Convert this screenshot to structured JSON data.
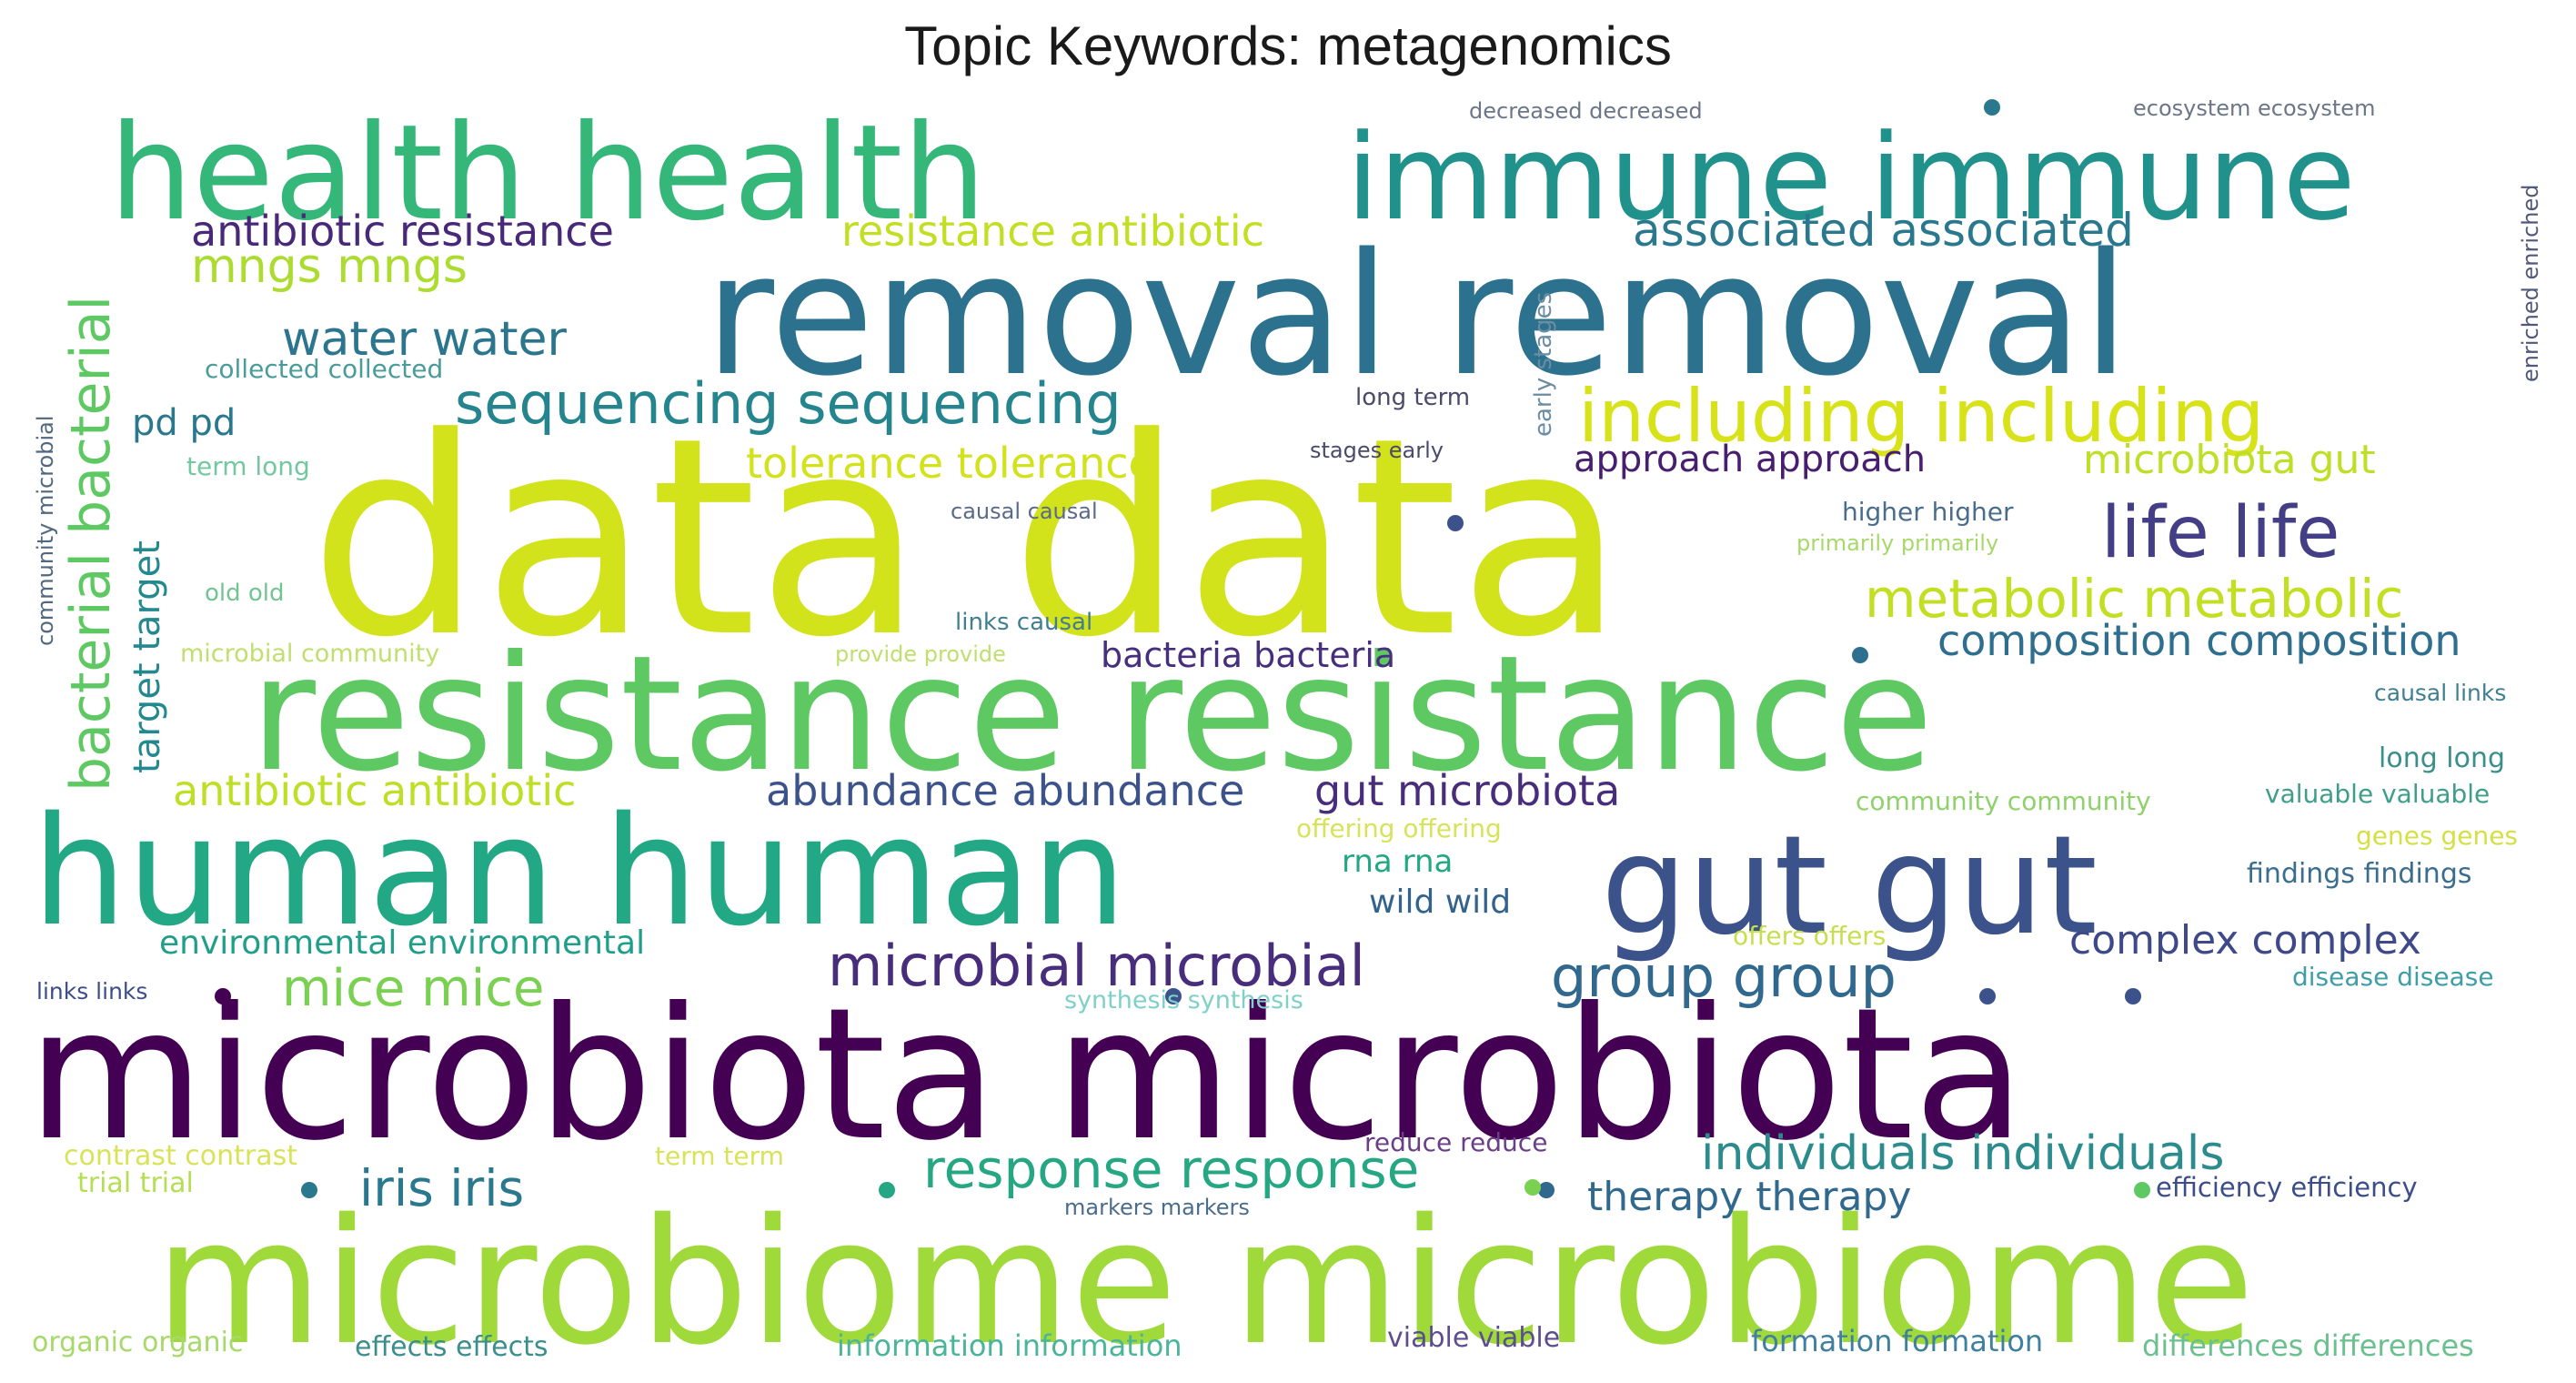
{
  "chart_data": {
    "type": "wordcloud",
    "title": "Topic Keywords: metagenomics",
    "words": [
      {
        "text": "data data",
        "weight": 100,
        "color": "#d2e21b"
      },
      {
        "text": "microbiota microbiota",
        "weight": 74,
        "color": "#440154"
      },
      {
        "text": "microbiome microbiome",
        "weight": 72,
        "color": "#9fda3a"
      },
      {
        "text": "removal removal",
        "weight": 70,
        "color": "#2c728e"
      },
      {
        "text": "resistance resistance",
        "weight": 68,
        "color": "#5ec962"
      },
      {
        "text": "human human",
        "weight": 66,
        "color": "#22a884"
      },
      {
        "text": "gut gut",
        "weight": 56,
        "color": "#3b528b"
      },
      {
        "text": "health health",
        "weight": 52,
        "color": "#35b779"
      },
      {
        "text": "immune immune",
        "weight": 50,
        "color": "#21918c"
      },
      {
        "text": "including including",
        "weight": 30,
        "color": "#d8e219"
      },
      {
        "text": "life life",
        "weight": 28,
        "color": "#433e85"
      },
      {
        "text": "bacterial bacterial",
        "weight": 28,
        "color": "#5ec962"
      },
      {
        "text": "sequencing sequencing",
        "weight": 24,
        "color": "#25858e"
      },
      {
        "text": "microbial microbial",
        "weight": 23,
        "color": "#472d7b"
      },
      {
        "text": "group group",
        "weight": 23,
        "color": "#31688e"
      },
      {
        "text": "metabolic metabolic",
        "weight": 22,
        "color": "#c2df23"
      },
      {
        "text": "response response",
        "weight": 22,
        "color": "#26a784"
      },
      {
        "text": "iris iris",
        "weight": 21,
        "color": "#2a788e"
      },
      {
        "text": "mice mice",
        "weight": 21,
        "color": "#7ad151"
      },
      {
        "text": "individuals individuals",
        "weight": 20,
        "color": "#2c8c8d"
      },
      {
        "text": "mngs mngs",
        "weight": 20,
        "color": "#addc30"
      },
      {
        "text": "water water",
        "weight": 20,
        "color": "#2b758e"
      },
      {
        "text": "associated associated",
        "weight": 19,
        "color": "#2a788e"
      },
      {
        "text": "tolerance tolerance",
        "weight": 18,
        "color": "#d2e21b"
      },
      {
        "text": "antibiotic antibiotic",
        "weight": 18,
        "color": "#bddf26"
      },
      {
        "text": "abundance abundance",
        "weight": 18,
        "color": "#3b528b"
      },
      {
        "text": "gut microbiota",
        "weight": 18,
        "color": "#472d7b"
      },
      {
        "text": "composition composition",
        "weight": 18,
        "color": "#2e6e8e"
      },
      {
        "text": "antibiotic resistance",
        "weight": 18,
        "color": "#482878"
      },
      {
        "text": "resistance antibiotic",
        "weight": 18,
        "color": "#c2df23"
      },
      {
        "text": "therapy therapy",
        "weight": 17,
        "color": "#31688e"
      },
      {
        "text": "complex complex",
        "weight": 17,
        "color": "#3e4989"
      },
      {
        "text": "target target",
        "weight": 16,
        "color": "#23898e"
      },
      {
        "text": "pd pd",
        "weight": 16,
        "color": "#2a788e"
      },
      {
        "text": "approach approach",
        "weight": 16,
        "color": "#481f70"
      },
      {
        "text": "bacteria bacteria",
        "weight": 15,
        "color": "#472f7d"
      },
      {
        "text": "environmental environmental",
        "weight": 14,
        "color": "#1f9e89"
      },
      {
        "text": "rna rna",
        "weight": 14,
        "color": "#22a884"
      },
      {
        "text": "wild wild",
        "weight": 14,
        "color": "#33638d"
      },
      {
        "text": "microbiota gut",
        "weight": 16,
        "color": "#bddf26"
      },
      {
        "text": "decreased decreased",
        "weight": 10,
        "color": "#6b7789"
      },
      {
        "text": "ecosystem ecosystem",
        "weight": 10,
        "color": "#6b7789"
      },
      {
        "text": "enriched enriched",
        "weight": 10,
        "color": "#52587a"
      },
      {
        "text": "early stages",
        "weight": 10,
        "color": "#6b8da3"
      },
      {
        "text": "long term",
        "weight": 10,
        "color": "#4b4a6b"
      },
      {
        "text": "stages early",
        "weight": 10,
        "color": "#4b4a6b"
      },
      {
        "text": "causal causal",
        "weight": 10,
        "color": "#5b6a88"
      },
      {
        "text": "higher higher",
        "weight": 10,
        "color": "#4a6d8c"
      },
      {
        "text": "primarily primarily",
        "weight": 10,
        "color": "#a6d96a"
      },
      {
        "text": "community microbial",
        "weight": 10,
        "color": "#52687f"
      },
      {
        "text": "collected collected",
        "weight": 10,
        "color": "#4a9c9a"
      },
      {
        "text": "term long",
        "weight": 10,
        "color": "#73c8a0"
      },
      {
        "text": "old old",
        "weight": 10,
        "color": "#72c491"
      },
      {
        "text": "microbial community",
        "weight": 10,
        "color": "#bfe06f"
      },
      {
        "text": "provide provide",
        "weight": 10,
        "color": "#bfe06f"
      },
      {
        "text": "links causal",
        "weight": 10,
        "color": "#3f7f8f"
      },
      {
        "text": "causal links",
        "weight": 10,
        "color": "#3f7f8f"
      },
      {
        "text": "long long",
        "weight": 10,
        "color": "#3a8e8b"
      },
      {
        "text": "valuable valuable",
        "weight": 10,
        "color": "#3f9e8a"
      },
      {
        "text": "community community",
        "weight": 10,
        "color": "#8fd16b"
      },
      {
        "text": "offering offering",
        "weight": 10,
        "color": "#d8e35a"
      },
      {
        "text": "genes genes",
        "weight": 10,
        "color": "#d4e045"
      },
      {
        "text": "findings findings",
        "weight": 10,
        "color": "#3b6e8e"
      },
      {
        "text": "offers offers",
        "weight": 10,
        "color": "#c6df4d"
      },
      {
        "text": "links links",
        "weight": 10,
        "color": "#3b4d8b"
      },
      {
        "text": "synthesis synthesis",
        "weight": 10,
        "color": "#7fd0c8"
      },
      {
        "text": "disease disease",
        "weight": 10,
        "color": "#3e9ea8"
      },
      {
        "text": "contrast contrast",
        "weight": 10,
        "color": "#d8e35a"
      },
      {
        "text": "trial trial",
        "weight": 10,
        "color": "#b6de55"
      },
      {
        "text": "term term",
        "weight": 10,
        "color": "#d8e35a"
      },
      {
        "text": "reduce reduce",
        "weight": 10,
        "color": "#6a3f88"
      },
      {
        "text": "markers markers",
        "weight": 10,
        "color": "#4a6d8c"
      },
      {
        "text": "efficiency efficiency",
        "weight": 10,
        "color": "#3b4d8b"
      },
      {
        "text": "organic organic",
        "weight": 10,
        "color": "#a6d96a"
      },
      {
        "text": "effects effects",
        "weight": 10,
        "color": "#3a8e8b"
      },
      {
        "text": "information information",
        "weight": 10,
        "color": "#4ab59a"
      },
      {
        "text": "viable viable",
        "weight": 10,
        "color": "#5b4d8e"
      },
      {
        "text": "formation formation",
        "weight": 10,
        "color": "#3f7fa0"
      },
      {
        "text": "differences differences",
        "weight": 10,
        "color": "#6cc090"
      }
    ]
  }
}
